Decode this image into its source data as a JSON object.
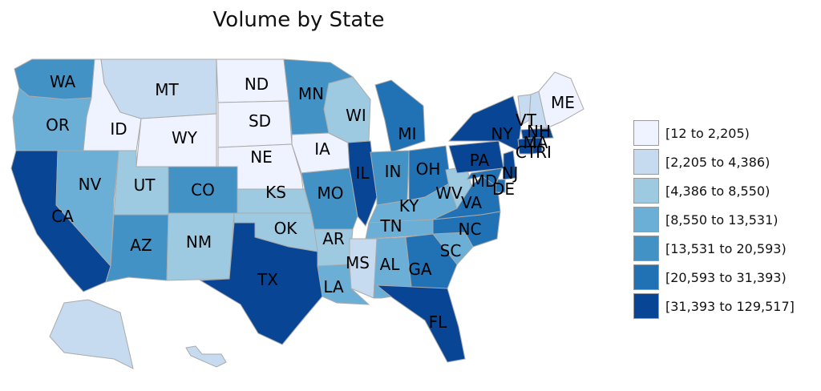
{
  "title": "Volume by State",
  "legend": [
    {
      "label": "[12 to 2,205)",
      "color": "#eff3ff"
    },
    {
      "label": "[2,205 to 4,386)",
      "color": "#c6dbef"
    },
    {
      "label": "[4,386 to 8,550)",
      "color": "#9ecae1"
    },
    {
      "label": "[8,550 to 13,531)",
      "color": "#6baed6"
    },
    {
      "label": "[13,531 to 20,593)",
      "color": "#4292c6"
    },
    {
      "label": "[20,593 to 31,393)",
      "color": "#2171b5"
    },
    {
      "label": "[31,393 to 129,517]",
      "color": "#084594"
    }
  ],
  "states": [
    {
      "abbr": "WA",
      "bin": 4
    },
    {
      "abbr": "OR",
      "bin": 3
    },
    {
      "abbr": "CA",
      "bin": 6
    },
    {
      "abbr": "ID",
      "bin": 0
    },
    {
      "abbr": "NV",
      "bin": 3
    },
    {
      "abbr": "MT",
      "bin": 1
    },
    {
      "abbr": "WY",
      "bin": 0
    },
    {
      "abbr": "UT",
      "bin": 2
    },
    {
      "abbr": "AZ",
      "bin": 4
    },
    {
      "abbr": "CO",
      "bin": 4
    },
    {
      "abbr": "NM",
      "bin": 2
    },
    {
      "abbr": "ND",
      "bin": 0
    },
    {
      "abbr": "SD",
      "bin": 0
    },
    {
      "abbr": "NE",
      "bin": 0
    },
    {
      "abbr": "KS",
      "bin": 2
    },
    {
      "abbr": "OK",
      "bin": 2
    },
    {
      "abbr": "TX",
      "bin": 6
    },
    {
      "abbr": "MN",
      "bin": 4
    },
    {
      "abbr": "IA",
      "bin": 0
    },
    {
      "abbr": "MO",
      "bin": 4
    },
    {
      "abbr": "AR",
      "bin": 2
    },
    {
      "abbr": "LA",
      "bin": 3
    },
    {
      "abbr": "WI",
      "bin": 2
    },
    {
      "abbr": "IL",
      "bin": 6
    },
    {
      "abbr": "MI",
      "bin": 5
    },
    {
      "abbr": "IN",
      "bin": 4
    },
    {
      "abbr": "OH",
      "bin": 5
    },
    {
      "abbr": "KY",
      "bin": 3
    },
    {
      "abbr": "TN",
      "bin": 3
    },
    {
      "abbr": "MS",
      "bin": 1
    },
    {
      "abbr": "AL",
      "bin": 3
    },
    {
      "abbr": "GA",
      "bin": 5
    },
    {
      "abbr": "FL",
      "bin": 6
    },
    {
      "abbr": "SC",
      "bin": 3
    },
    {
      "abbr": "NC",
      "bin": 5
    },
    {
      "abbr": "VA",
      "bin": 5
    },
    {
      "abbr": "WV",
      "bin": 2
    },
    {
      "abbr": "PA",
      "bin": 6
    },
    {
      "abbr": "NY",
      "bin": 6
    },
    {
      "abbr": "VT",
      "bin": 1
    },
    {
      "abbr": "NH",
      "bin": 1
    },
    {
      "abbr": "ME",
      "bin": 0
    },
    {
      "abbr": "MA",
      "bin": 6
    },
    {
      "abbr": "CT",
      "bin": 6
    },
    {
      "abbr": "RI",
      "bin": 6
    },
    {
      "abbr": "NJ",
      "bin": 6
    },
    {
      "abbr": "DE",
      "bin": 5
    },
    {
      "abbr": "MD",
      "bin": 5
    },
    {
      "abbr": "AK",
      "bin": 1
    },
    {
      "abbr": "HI",
      "bin": 1
    }
  ]
}
